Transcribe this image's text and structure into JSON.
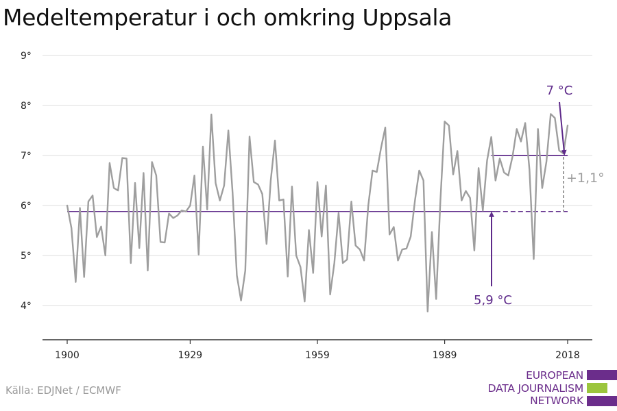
{
  "title": "Medeltemperatur i och omkring Uppsala",
  "source": "Källa: EDJNet / ECMWF",
  "logo": {
    "lines": [
      "EUROPEAN",
      "DATA JOURNALISM",
      "NETWORK"
    ],
    "colors": [
      "#6b2d8b",
      "#9bc53d",
      "#6b2d8b"
    ]
  },
  "colors": {
    "series": "#9e9e9e",
    "reference": "#5e2a8a",
    "annotation": "#5e2a8a",
    "diff": "#9e9e9e",
    "grid": "#dddddd",
    "axis": "#333333"
  },
  "chart_data": {
    "type": "line",
    "title": "Medeltemperatur i och omkring Uppsala",
    "xlabel": "",
    "ylabel": "",
    "xlim": [
      1900,
      2018
    ],
    "ylim": [
      3.5,
      9.2
    ],
    "x_ticks": [
      1900,
      1929,
      1959,
      1989,
      2018
    ],
    "x_tick_labels": [
      "1900",
      "1929",
      "1959",
      "1989",
      "2018"
    ],
    "y_ticks": [
      4,
      5,
      6,
      7,
      8,
      9
    ],
    "y_tick_labels": [
      "4°",
      "5°",
      "6°",
      "7°",
      "8°",
      "9°"
    ],
    "grid": true,
    "series": [
      {
        "x_start": 1900,
        "values": [
          6.0,
          5.55,
          4.47,
          5.95,
          4.57,
          6.08,
          6.2,
          5.37,
          5.58,
          5.0,
          6.85,
          6.35,
          6.3,
          6.95,
          6.94,
          4.85,
          6.45,
          5.15,
          6.65,
          4.7,
          6.87,
          6.6,
          5.27,
          5.26,
          5.84,
          5.75,
          5.8,
          5.9,
          5.88,
          6.0,
          6.6,
          5.02,
          7.18,
          5.92,
          7.82,
          6.45,
          6.1,
          6.4,
          7.5,
          6.25,
          4.6,
          4.1,
          4.7,
          7.38,
          6.47,
          6.42,
          6.23,
          5.23,
          6.5,
          7.3,
          6.1,
          6.12,
          4.58,
          6.38,
          5.0,
          4.77,
          4.08,
          5.51,
          4.65,
          6.47,
          5.38,
          6.4,
          4.22,
          4.85,
          5.85,
          4.85,
          4.92,
          6.08,
          5.2,
          5.12,
          4.9,
          6.0,
          6.7,
          6.67,
          7.15,
          7.56,
          5.42,
          5.57,
          4.9,
          5.12,
          5.14,
          5.38,
          6.1,
          6.7,
          6.5,
          3.88,
          5.47,
          4.13,
          6.1,
          7.68,
          7.6,
          6.62,
          7.09,
          6.1,
          6.29,
          6.15,
          5.1,
          6.75,
          5.9,
          6.9,
          7.37,
          6.5,
          6.94,
          6.66,
          6.6,
          6.98,
          7.53,
          7.28,
          7.65,
          6.72,
          4.93,
          7.53,
          6.35,
          6.88,
          7.83,
          7.75,
          7.1,
          7.04,
          7.6
        ]
      }
    ],
    "reference_lines": [
      {
        "value": 5.88,
        "x_start": 1900,
        "x_end": 2018,
        "solid_until": 2001
      },
      {
        "value": 7.0,
        "x_start": 2000,
        "x_end": 2018
      }
    ],
    "annotations": [
      {
        "text": "7 °C"
      },
      {
        "text": "5,9 °C"
      },
      {
        "text": "+1,1°"
      }
    ]
  }
}
